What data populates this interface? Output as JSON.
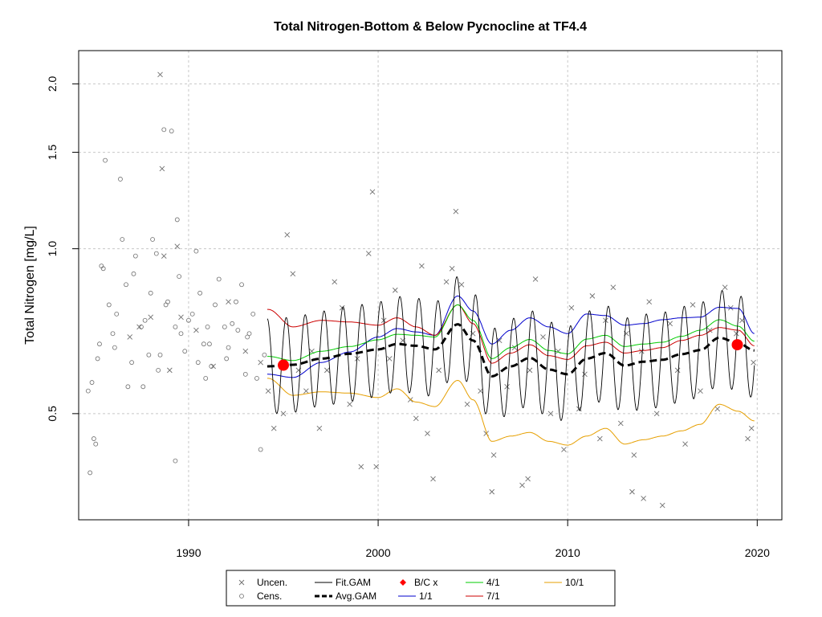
{
  "colors": {
    "fit": "#000000",
    "avg": "#000000",
    "ratio_1_1": "#0000cc",
    "ratio_4_1": "#00cc00",
    "ratio_7_1": "#cc0000",
    "ratio_10_1": "#e69f00",
    "bc": "#ff0000",
    "points": "#707070",
    "grid": "#c8c8c8"
  },
  "chart_data": {
    "type": "scatter",
    "title": "Total Nitrogen-Bottom & Below Pycnocline at TF4.4",
    "xlabel": "",
    "ylabel": "Total Nitrogen [mg/L]",
    "ylog": true,
    "xlim": [
      1984.2,
      2021.3
    ],
    "ylim": [
      0.32,
      2.3
    ],
    "grid": true,
    "xticks": [
      1990,
      2000,
      2010,
      2020
    ],
    "xtick_labels": [
      "1990",
      "2000",
      "2010",
      "2020"
    ],
    "yticks": [
      0.5,
      1.0,
      1.5,
      2.0
    ],
    "ytick_labels": [
      "0.5",
      "1.0",
      "1.5",
      "2.0"
    ],
    "legend": {
      "placement": "bottom-center",
      "entries": [
        {
          "label": "Uncen.",
          "kind": "x"
        },
        {
          "label": "Cens.",
          "kind": "o"
        },
        {
          "label": "Fit.GAM",
          "kind": "line",
          "color_key": "fit"
        },
        {
          "label": "Avg.GAM",
          "kind": "dash",
          "color_key": "avg"
        },
        {
          "label": "B/C x",
          "kind": "diamond",
          "color_key": "bc"
        },
        {
          "label": "1/1",
          "kind": "line",
          "color_key": "ratio_1_1"
        },
        {
          "label": "4/1",
          "kind": "line",
          "color_key": "ratio_4_1"
        },
        {
          "label": "7/1",
          "kind": "line",
          "color_key": "ratio_7_1"
        },
        {
          "label": "10/1",
          "kind": "line",
          "color_key": "ratio_10_1"
        }
      ]
    },
    "censored_points": [
      [
        1984.7,
        0.55
      ],
      [
        1984.9,
        0.57
      ],
      [
        1985.0,
        0.45
      ],
      [
        1985.2,
        0.63
      ],
      [
        1985.3,
        0.67
      ],
      [
        1985.5,
        0.92
      ],
      [
        1985.6,
        1.45
      ],
      [
        1985.8,
        0.79
      ],
      [
        1986.0,
        0.7
      ],
      [
        1986.2,
        0.76
      ],
      [
        1986.5,
        1.04
      ],
      [
        1986.8,
        0.56
      ],
      [
        1987.0,
        0.62
      ],
      [
        1987.2,
        0.97
      ],
      [
        1987.5,
        0.72
      ],
      [
        1987.7,
        0.74
      ],
      [
        1987.9,
        0.64
      ],
      [
        1988.1,
        1.04
      ],
      [
        1988.3,
        0.98
      ],
      [
        1988.5,
        0.64
      ],
      [
        1988.7,
        1.65
      ],
      [
        1988.9,
        0.8
      ],
      [
        1989.1,
        1.64
      ],
      [
        1989.3,
        0.72
      ],
      [
        1989.4,
        1.13
      ],
      [
        1989.6,
        0.7
      ],
      [
        1989.8,
        0.65
      ],
      [
        1990.0,
        0.74
      ],
      [
        1990.2,
        0.76
      ],
      [
        1990.4,
        0.99
      ],
      [
        1990.6,
        0.83
      ],
      [
        1990.8,
        0.67
      ],
      [
        1991.0,
        0.72
      ],
      [
        1991.2,
        0.61
      ],
      [
        1991.4,
        0.79
      ],
      [
        1991.6,
        0.88
      ],
      [
        1991.9,
        0.72
      ],
      [
        1992.1,
        0.66
      ],
      [
        1992.3,
        0.73
      ],
      [
        1992.6,
        0.71
      ],
      [
        1992.8,
        0.86
      ],
      [
        1993.0,
        0.59
      ],
      [
        1993.2,
        0.7
      ],
      [
        1993.4,
        0.76
      ],
      [
        1993.6,
        0.58
      ],
      [
        1994.0,
        0.64
      ],
      [
        1985.4,
        0.93
      ],
      [
        1986.1,
        0.66
      ],
      [
        1986.7,
        0.86
      ],
      [
        1987.1,
        0.9
      ],
      [
        1988.0,
        0.83
      ],
      [
        1988.8,
        0.79
      ],
      [
        1989.5,
        0.89
      ],
      [
        1990.5,
        0.62
      ],
      [
        1991.1,
        0.67
      ],
      [
        1992.0,
        0.63
      ],
      [
        1992.5,
        0.8
      ],
      [
        1993.1,
        0.69
      ],
      [
        1984.8,
        0.39
      ],
      [
        1985.1,
        0.44
      ],
      [
        1989.3,
        0.41
      ],
      [
        1993.8,
        0.43
      ],
      [
        1987.6,
        0.56
      ],
      [
        1988.4,
        0.6
      ],
      [
        1990.9,
        0.58
      ],
      [
        1986.4,
        1.34
      ]
    ],
    "uncensored_points": [
      [
        1986.9,
        0.69
      ],
      [
        1987.4,
        0.72
      ],
      [
        1988.0,
        0.75
      ],
      [
        1988.5,
        2.08
      ],
      [
        1988.6,
        1.4
      ],
      [
        1988.7,
        0.97
      ],
      [
        1989.0,
        0.6
      ],
      [
        1989.4,
        1.01
      ],
      [
        1989.6,
        0.75
      ],
      [
        1990.4,
        0.71
      ],
      [
        1991.3,
        0.61
      ],
      [
        1992.1,
        0.8
      ],
      [
        1993.0,
        0.65
      ],
      [
        1993.8,
        0.62
      ],
      [
        1994.2,
        0.55
      ],
      [
        1994.5,
        0.47
      ],
      [
        1995.0,
        0.5
      ],
      [
        1995.2,
        1.06
      ],
      [
        1995.5,
        0.9
      ],
      [
        1995.8,
        0.6
      ],
      [
        1996.2,
        0.55
      ],
      [
        1996.5,
        0.65
      ],
      [
        1996.9,
        0.47
      ],
      [
        1997.3,
        0.6
      ],
      [
        1997.7,
        0.87
      ],
      [
        1998.1,
        0.78
      ],
      [
        1998.5,
        0.52
      ],
      [
        1998.9,
        0.63
      ],
      [
        1999.1,
        0.4
      ],
      [
        1999.5,
        0.98
      ],
      [
        1999.7,
        1.27
      ],
      [
        1999.9,
        0.4
      ],
      [
        2000.3,
        0.74
      ],
      [
        2000.6,
        0.63
      ],
      [
        2000.9,
        0.84
      ],
      [
        2001.3,
        0.68
      ],
      [
        2001.7,
        0.53
      ],
      [
        2002.0,
        0.49
      ],
      [
        2002.3,
        0.93
      ],
      [
        2002.6,
        0.46
      ],
      [
        2002.9,
        0.38
      ],
      [
        2003.2,
        0.6
      ],
      [
        2003.6,
        0.87
      ],
      [
        2003.9,
        0.92
      ],
      [
        2004.1,
        1.17
      ],
      [
        2004.4,
        0.86
      ],
      [
        2004.7,
        0.52
      ],
      [
        2005.0,
        0.7
      ],
      [
        2005.4,
        0.55
      ],
      [
        2005.7,
        0.46
      ],
      [
        2006.1,
        0.42
      ],
      [
        2006.4,
        0.68
      ],
      [
        2006.8,
        0.56
      ],
      [
        2007.2,
        0.66
      ],
      [
        2007.6,
        0.37
      ],
      [
        2008.0,
        0.6
      ],
      [
        2008.3,
        0.88
      ],
      [
        2008.7,
        0.69
      ],
      [
        2009.1,
        0.5
      ],
      [
        2009.5,
        0.65
      ],
      [
        2009.8,
        0.43
      ],
      [
        2010.2,
        0.78
      ],
      [
        2010.6,
        0.51
      ],
      [
        2010.9,
        0.59
      ],
      [
        2011.3,
        0.82
      ],
      [
        2011.7,
        0.45
      ],
      [
        2012.0,
        0.74
      ],
      [
        2012.4,
        0.85
      ],
      [
        2012.8,
        0.48
      ],
      [
        2013.1,
        0.7
      ],
      [
        2013.5,
        0.42
      ],
      [
        2013.9,
        0.65
      ],
      [
        2014.3,
        0.8
      ],
      [
        2014.7,
        0.5
      ],
      [
        2015.0,
        0.34
      ],
      [
        2015.4,
        0.73
      ],
      [
        2015.8,
        0.6
      ],
      [
        2016.2,
        0.44
      ],
      [
        2016.6,
        0.79
      ],
      [
        2017.0,
        0.55
      ],
      [
        2017.5,
        0.71
      ],
      [
        2017.9,
        0.51
      ],
      [
        2018.3,
        0.85
      ],
      [
        2018.6,
        0.78
      ],
      [
        2018.9,
        0.7
      ],
      [
        2019.2,
        0.74
      ],
      [
        2019.5,
        0.45
      ],
      [
        2019.8,
        0.62
      ],
      [
        2007.9,
        0.38
      ],
      [
        2013.4,
        0.36
      ],
      [
        2006.0,
        0.36
      ],
      [
        2014.0,
        0.35
      ],
      [
        2019.7,
        0.47
      ]
    ],
    "bc_points": [
      {
        "year": 1995.0,
        "value": 0.613
      },
      {
        "year": 2018.95,
        "value": 0.668
      }
    ],
    "gam": {
      "start": 1994.15,
      "end": 2019.85,
      "avg": [
        [
          1994.2,
          0.61
        ],
        [
          1995.5,
          0.614
        ],
        [
          1997.0,
          0.63
        ],
        [
          1998.5,
          0.643
        ],
        [
          2000.0,
          0.655
        ],
        [
          2001.0,
          0.67
        ],
        [
          2002.0,
          0.665
        ],
        [
          2003.0,
          0.655
        ],
        [
          2004.2,
          0.728
        ],
        [
          2005.0,
          0.68
        ],
        [
          2006.0,
          0.585
        ],
        [
          2007.0,
          0.61
        ],
        [
          2008.0,
          0.632
        ],
        [
          2009.0,
          0.602
        ],
        [
          2010.0,
          0.59
        ],
        [
          2011.0,
          0.63
        ],
        [
          2012.0,
          0.645
        ],
        [
          2013.0,
          0.612
        ],
        [
          2014.0,
          0.622
        ],
        [
          2015.0,
          0.627
        ],
        [
          2016.0,
          0.642
        ],
        [
          2017.0,
          0.653
        ],
        [
          2018.0,
          0.688
        ],
        [
          2019.0,
          0.672
        ],
        [
          2019.85,
          0.652
        ]
      ],
      "ratio_1_1": [
        [
          1994.2,
          0.59
        ],
        [
          1995.5,
          0.582
        ],
        [
          1997.0,
          0.62
        ],
        [
          1998.5,
          0.648
        ],
        [
          2000.0,
          0.69
        ],
        [
          2001.0,
          0.715
        ],
        [
          2002.0,
          0.705
        ],
        [
          2003.0,
          0.695
        ],
        [
          2004.2,
          0.82
        ],
        [
          2005.0,
          0.77
        ],
        [
          2006.0,
          0.67
        ],
        [
          2007.0,
          0.71
        ],
        [
          2008.0,
          0.748
        ],
        [
          2009.0,
          0.72
        ],
        [
          2010.0,
          0.7
        ],
        [
          2011.0,
          0.76
        ],
        [
          2012.0,
          0.755
        ],
        [
          2013.0,
          0.725
        ],
        [
          2014.0,
          0.73
        ],
        [
          2015.0,
          0.742
        ],
        [
          2016.0,
          0.748
        ],
        [
          2017.0,
          0.75
        ],
        [
          2018.0,
          0.782
        ],
        [
          2019.0,
          0.778
        ],
        [
          2019.85,
          0.7
        ]
      ],
      "ratio_4_1": [
        [
          1994.2,
          0.636
        ],
        [
          1995.5,
          0.625
        ],
        [
          1997.0,
          0.65
        ],
        [
          1998.5,
          0.663
        ],
        [
          2000.0,
          0.682
        ],
        [
          2001.0,
          0.698
        ],
        [
          2002.0,
          0.695
        ],
        [
          2003.0,
          0.69
        ],
        [
          2004.2,
          0.79
        ],
        [
          2005.0,
          0.74
        ],
        [
          2006.0,
          0.63
        ],
        [
          2007.0,
          0.66
        ],
        [
          2008.0,
          0.683
        ],
        [
          2009.0,
          0.652
        ],
        [
          2010.0,
          0.643
        ],
        [
          2011.0,
          0.684
        ],
        [
          2012.0,
          0.695
        ],
        [
          2013.0,
          0.663
        ],
        [
          2014.0,
          0.67
        ],
        [
          2015.0,
          0.675
        ],
        [
          2016.0,
          0.692
        ],
        [
          2017.0,
          0.71
        ],
        [
          2018.0,
          0.742
        ],
        [
          2019.0,
          0.722
        ],
        [
          2019.85,
          0.678
        ]
      ],
      "ratio_7_1": [
        [
          1994.2,
          0.775
        ],
        [
          1995.5,
          0.72
        ],
        [
          1997.0,
          0.74
        ],
        [
          1998.5,
          0.735
        ],
        [
          2000.0,
          0.725
        ],
        [
          2001.0,
          0.748
        ],
        [
          2002.0,
          0.72
        ],
        [
          2003.0,
          0.695
        ],
        [
          2004.2,
          0.79
        ],
        [
          2005.0,
          0.73
        ],
        [
          2006.0,
          0.618
        ],
        [
          2007.0,
          0.645
        ],
        [
          2008.0,
          0.668
        ],
        [
          2009.0,
          0.638
        ],
        [
          2010.0,
          0.628
        ],
        [
          2011.0,
          0.665
        ],
        [
          2012.0,
          0.675
        ],
        [
          2013.0,
          0.645
        ],
        [
          2014.0,
          0.652
        ],
        [
          2015.0,
          0.66
        ],
        [
          2016.0,
          0.68
        ],
        [
          2017.0,
          0.695
        ],
        [
          2018.0,
          0.718
        ],
        [
          2019.0,
          0.71
        ],
        [
          2019.85,
          0.665
        ]
      ],
      "ratio_10_1": [
        [
          1994.2,
          0.58
        ],
        [
          1995.5,
          0.54
        ],
        [
          1997.0,
          0.548
        ],
        [
          1998.5,
          0.545
        ],
        [
          2000.0,
          0.535
        ],
        [
          2001.0,
          0.555
        ],
        [
          2002.0,
          0.525
        ],
        [
          2003.0,
          0.515
        ],
        [
          2004.2,
          0.575
        ],
        [
          2005.0,
          0.53
        ],
        [
          2006.0,
          0.445
        ],
        [
          2007.0,
          0.455
        ],
        [
          2008.0,
          0.462
        ],
        [
          2009.0,
          0.445
        ],
        [
          2010.0,
          0.438
        ],
        [
          2011.0,
          0.455
        ],
        [
          2012.0,
          0.47
        ],
        [
          2013.0,
          0.44
        ],
        [
          2014.0,
          0.448
        ],
        [
          2015.0,
          0.455
        ],
        [
          2016.0,
          0.465
        ],
        [
          2017.0,
          0.478
        ],
        [
          2018.0,
          0.52
        ],
        [
          2019.0,
          0.505
        ],
        [
          2019.85,
          0.485
        ]
      ],
      "fit_amplitude": 0.2
    }
  }
}
